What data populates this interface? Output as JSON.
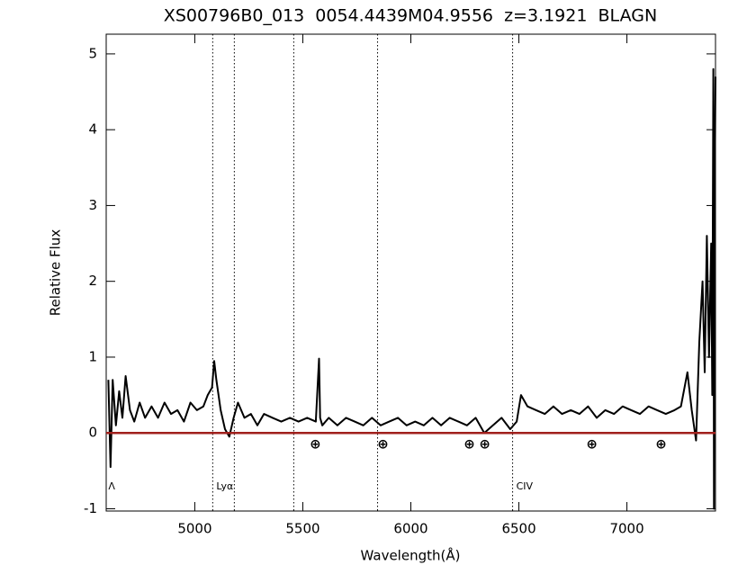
{
  "chart_data": {
    "type": "line",
    "title": "XS00796B0_013  0054.4439M04.9556  z=3.1921  BLAGN",
    "x_label": "Wavelength(Å)",
    "y_label": "Relative Flux",
    "xlim": [
      4590,
      7410
    ],
    "ylim": [
      -1.03,
      5.26
    ],
    "xticks": [
      5000,
      5500,
      6000,
      6500,
      7000
    ],
    "yticks": [
      -1,
      0,
      1,
      2,
      3,
      4,
      5
    ],
    "series": [
      {
        "color": "#000000",
        "x": [
          4600,
          4610,
          4620,
          4635,
          4650,
          4665,
          4680,
          4700,
          4720,
          4745,
          4770,
          4800,
          4830,
          4860,
          4890,
          4920,
          4950,
          4980,
          5010,
          5040,
          5060,
          5080,
          5090,
          5100,
          5120,
          5140,
          5160,
          5180,
          5200,
          5230,
          5260,
          5290,
          5320,
          5360,
          5400,
          5440,
          5480,
          5520,
          5560,
          5575,
          5580,
          5590,
          5620,
          5660,
          5700,
          5740,
          5780,
          5820,
          5860,
          5900,
          5940,
          5980,
          6020,
          6060,
          6100,
          6140,
          6180,
          6220,
          6260,
          6300,
          6340,
          6380,
          6420,
          6460,
          6490,
          6510,
          6540,
          6580,
          6620,
          6660,
          6700,
          6740,
          6780,
          6820,
          6860,
          6900,
          6940,
          6980,
          7020,
          7060,
          7100,
          7140,
          7180,
          7220,
          7250,
          7280,
          7300,
          7320,
          7335,
          7350,
          7360,
          7370,
          7380,
          7390,
          7395,
          7400,
          7403,
          7406,
          7410
        ],
        "values": [
          0.7,
          -0.45,
          0.7,
          0.1,
          0.55,
          0.2,
          0.75,
          0.3,
          0.15,
          0.4,
          0.2,
          0.35,
          0.2,
          0.4,
          0.25,
          0.3,
          0.15,
          0.4,
          0.3,
          0.35,
          0.5,
          0.6,
          0.95,
          0.7,
          0.3,
          0.05,
          -0.05,
          0.2,
          0.4,
          0.2,
          0.25,
          0.1,
          0.25,
          0.2,
          0.15,
          0.2,
          0.15,
          0.2,
          0.15,
          0.98,
          0.2,
          0.1,
          0.2,
          0.1,
          0.2,
          0.15,
          0.1,
          0.2,
          0.1,
          0.15,
          0.2,
          0.1,
          0.15,
          0.1,
          0.2,
          0.1,
          0.2,
          0.15,
          0.1,
          0.2,
          0.0,
          0.1,
          0.2,
          0.05,
          0.15,
          0.5,
          0.35,
          0.3,
          0.25,
          0.35,
          0.25,
          0.3,
          0.25,
          0.35,
          0.2,
          0.3,
          0.25,
          0.35,
          0.3,
          0.25,
          0.35,
          0.3,
          0.25,
          0.3,
          0.35,
          0.8,
          0.3,
          -0.1,
          1.2,
          2.0,
          0.8,
          2.6,
          1.0,
          2.5,
          0.5,
          4.8,
          -1.0,
          3.0,
          4.7
        ]
      }
    ],
    "zero_line": {
      "value": 0,
      "color": "#a0201c"
    },
    "line_markers": [
      {
        "x": 5083,
        "label": "Lyα"
      },
      {
        "x": 5183
      },
      {
        "x": 5458
      },
      {
        "x": 5846
      },
      {
        "x": 6471,
        "label": "CIV"
      }
    ],
    "edge_label": {
      "x": 4600,
      "label": "Λ"
    },
    "telluric": {
      "symbol": "⊕",
      "y": -0.15,
      "x": [
        5558,
        5871,
        6271,
        6342,
        6838,
        7158
      ]
    }
  }
}
